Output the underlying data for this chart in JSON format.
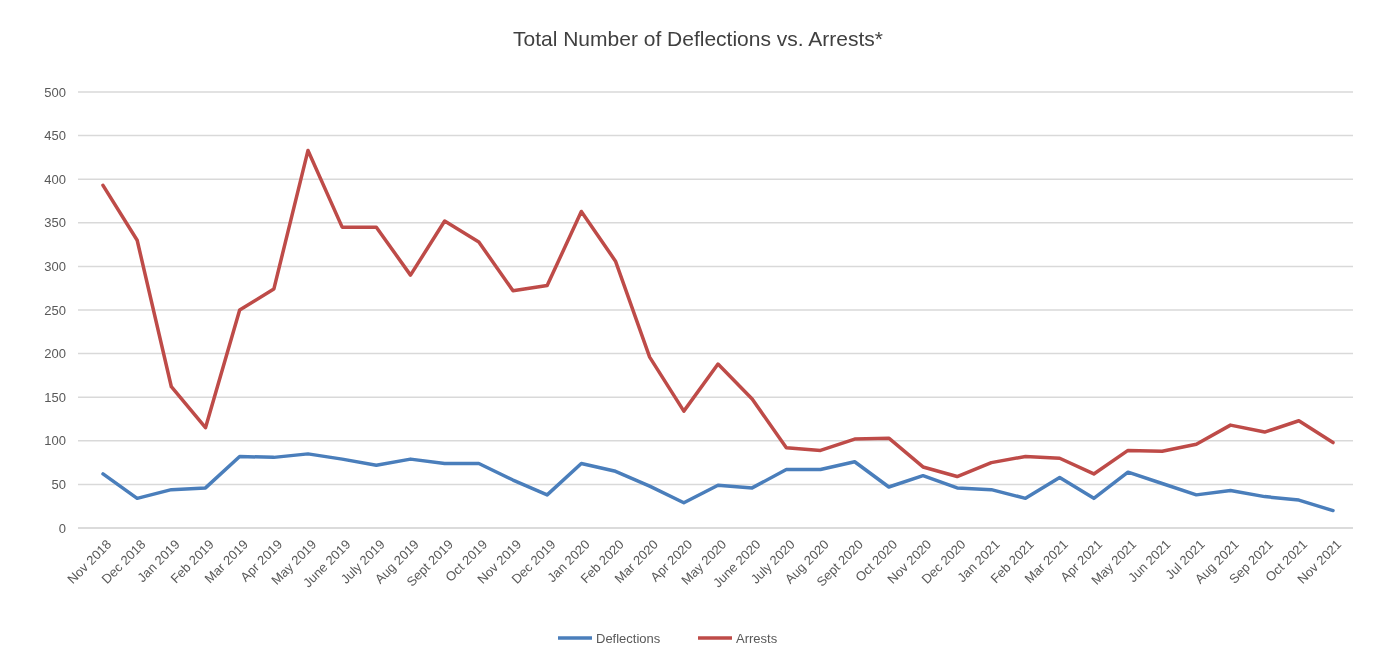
{
  "chart_data": {
    "type": "line",
    "title": "Total Number of Deflections vs. Arrests*",
    "categories": [
      "Nov 2018",
      "Dec 2018",
      "Jan 2019",
      "Feb 2019",
      "Mar 2019",
      "Apr 2019",
      "May 2019",
      "June 2019",
      "July 2019",
      "Aug 2019",
      "Sept 2019",
      "Oct 2019",
      "Nov 2019",
      "Dec 2019",
      "Jan 2020",
      "Feb 2020",
      "Mar 2020",
      "Apr 2020",
      "May 2020",
      "June 2020",
      "July 2020",
      "Aug 2020",
      "Sept 2020",
      "Oct 2020",
      "Nov 2020",
      "Dec 2020",
      "Jan 2021",
      "Feb 2021",
      "Mar 2021",
      "Apr 2021",
      "May 2021",
      "Jun 2021",
      "Jul 2021",
      "Aug 2021",
      "Sep 2021",
      "Oct 2021",
      "Nov 2021"
    ],
    "series": [
      {
        "name": "Deflections",
        "color": "#4a7ebb",
        "values": [
          62,
          34,
          44,
          46,
          82,
          81,
          85,
          79,
          72,
          79,
          74,
          74,
          55,
          38,
          74,
          65,
          48,
          29,
          49,
          46,
          67,
          67,
          76,
          47,
          60,
          46,
          44,
          34,
          58,
          34,
          64,
          51,
          38,
          43,
          36,
          32,
          20
        ]
      },
      {
        "name": "Arrests",
        "color": "#be4b48",
        "values": [
          393,
          330,
          162,
          115,
          250,
          274,
          433,
          345,
          345,
          290,
          352,
          328,
          272,
          278,
          363,
          306,
          196,
          134,
          188,
          148,
          92,
          89,
          102,
          103,
          70,
          59,
          75,
          82,
          80,
          62,
          89,
          88,
          96,
          118,
          110,
          123,
          98
        ]
      }
    ],
    "ylim": [
      0,
      500
    ],
    "yticks": [
      0,
      50,
      100,
      150,
      200,
      250,
      300,
      350,
      400,
      450,
      500
    ],
    "grid": "y",
    "legend": "bottom"
  }
}
